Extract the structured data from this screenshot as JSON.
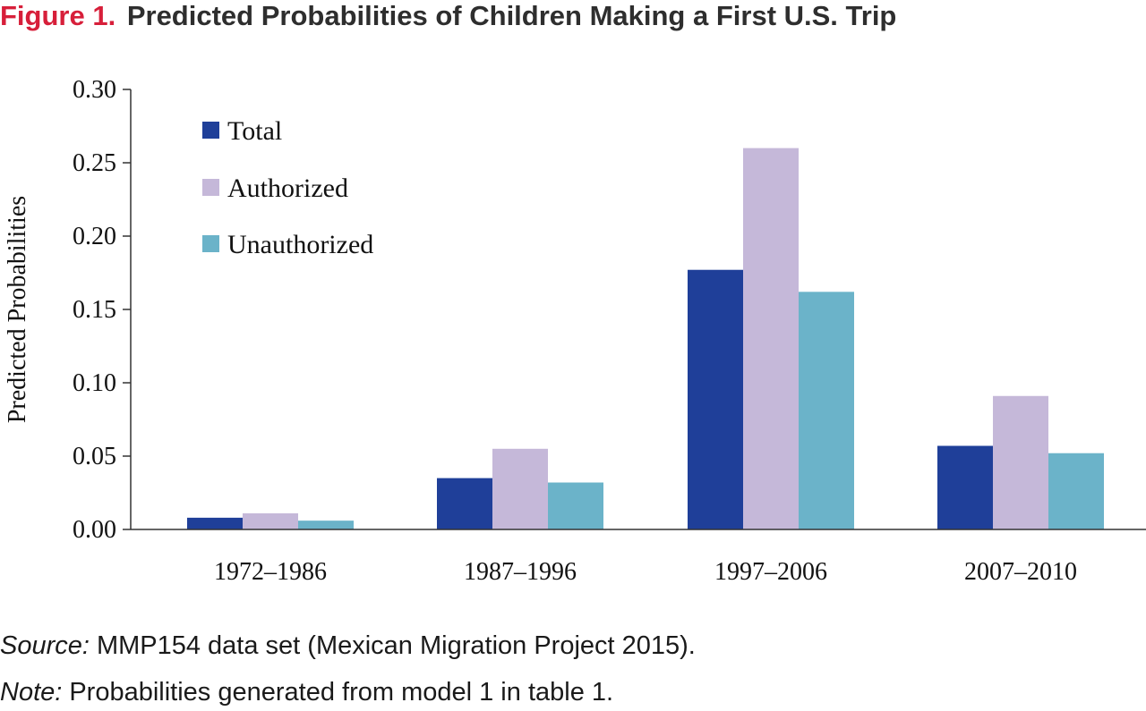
{
  "figure": {
    "number": "Figure 1.",
    "title": "Predicted Probabilities of Children Making a First U.S. Trip"
  },
  "source": {
    "label": "Source:",
    "text": "MMP154 data set (Mexican Migration Project 2015)."
  },
  "note": {
    "label": "Note:",
    "text": "Probabilities generated from model 1 in table 1."
  },
  "chart_data": {
    "type": "bar",
    "title": "Predicted Probabilities of Children Making a First U.S. Trip",
    "xlabel": "",
    "ylabel": "Predicted Probabilities",
    "categories": [
      "1972–1986",
      "1987–1996",
      "1997–2006",
      "2007–2010"
    ],
    "ylim": [
      0,
      0.3
    ],
    "yticks": [
      "0.00",
      "0.05",
      "0.10",
      "0.15",
      "0.20",
      "0.25",
      "0.30"
    ],
    "legend_position": "top-left",
    "grid": false,
    "series": [
      {
        "name": "Total",
        "color": "#1f3f99",
        "values": [
          0.008,
          0.035,
          0.177,
          0.057
        ]
      },
      {
        "name": "Authorized",
        "color": "#c5b8d9",
        "values": [
          0.011,
          0.055,
          0.26,
          0.091
        ]
      },
      {
        "name": "Unauthorized",
        "color": "#6bb3c9",
        "values": [
          0.006,
          0.032,
          0.162,
          0.052
        ]
      }
    ]
  }
}
